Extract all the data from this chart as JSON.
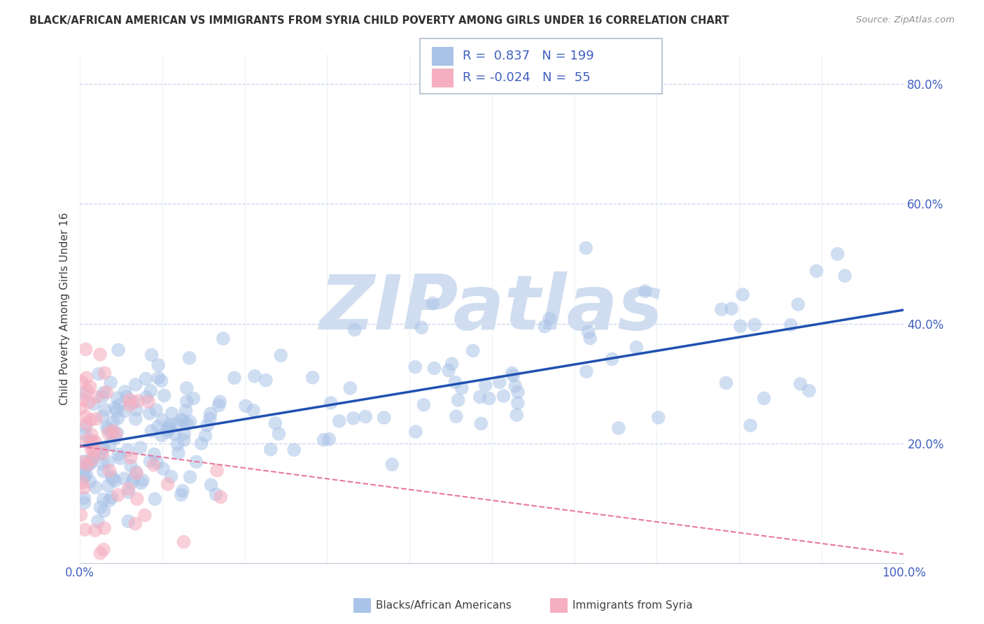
{
  "title": "BLACK/AFRICAN AMERICAN VS IMMIGRANTS FROM SYRIA CHILD POVERTY AMONG GIRLS UNDER 16 CORRELATION CHART",
  "source": "Source: ZipAtlas.com",
  "ylabel": "Child Poverty Among Girls Under 16",
  "blue_R": 0.837,
  "blue_N": 199,
  "pink_R": -0.024,
  "pink_N": 55,
  "blue_color": "#aac4e8",
  "pink_color": "#f5afc0",
  "blue_line_color": "#2050b0",
  "pink_line_color": "#e878a0",
  "watermark": "ZIPatlas",
  "watermark_color": "#d0ddf0",
  "bg_color": "#ffffff",
  "grid_color": "#c8d4e8",
  "title_color": "#303030",
  "axis_color": "#4060c0",
  "legend_label_blue": "Blacks/African Americans",
  "legend_label_pink": "Immigrants from Syria",
  "xlim": [
    0,
    1
  ],
  "ylim": [
    0,
    0.85
  ],
  "x_ticks": [
    0.0,
    0.1,
    0.2,
    0.3,
    0.4,
    0.5,
    0.6,
    0.7,
    0.8,
    0.9,
    1.0
  ],
  "x_tick_labels": [
    "0.0%",
    "",
    "",
    "",
    "",
    "",
    "",
    "",
    "",
    "",
    "100.0%"
  ],
  "y_ticks": [
    0.0,
    0.2,
    0.4,
    0.6,
    0.8
  ],
  "y_tick_labels": [
    "",
    "20.0%",
    "40.0%",
    "60.0%",
    "80.0%"
  ],
  "blue_intercept": 0.195,
  "blue_slope": 0.228,
  "pink_intercept": 0.195,
  "pink_slope": -0.18
}
